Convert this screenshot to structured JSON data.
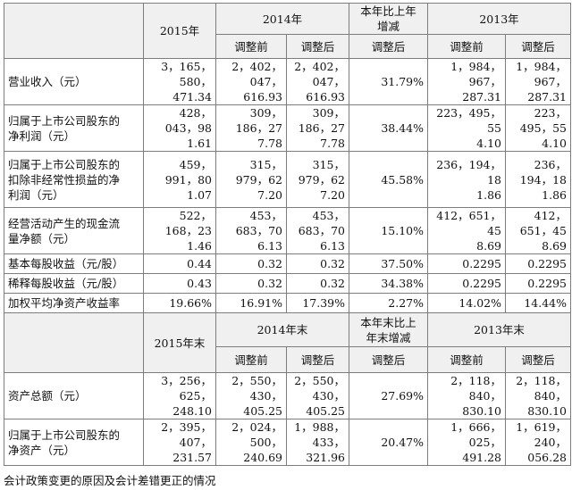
{
  "top_header": {
    "y2015": "2015年",
    "y2014": "2014年",
    "change": "本年比上年\n增减",
    "y2013": "2013年",
    "adj_before": "调整前",
    "adj_after": "调整后",
    "change_adj": "调整后"
  },
  "income_rows": [
    {
      "label": "营业收入（元）",
      "v2015": "3，165，580，\n471.34",
      "v2014a": "2，402，047，\n616.93",
      "v2014b": "2，402，047，\n616.93",
      "chg": "31.79%",
      "v2013a": "1，984，967，\n287.31",
      "v2013b": "1，984，967，\n287.31"
    },
    {
      "label": "归属于上市公司股东的\n净利润（元）",
      "v2015": "428，043，98\n1.61",
      "v2014a": "309，186，27\n7.78",
      "v2014b": "309，186，27\n7.78",
      "chg": "38.44%",
      "v2013a": "223，495，55\n4.10",
      "v2013b": "223，495，55\n4.10"
    },
    {
      "label": "归属于上市公司股东的\n扣除非经常性损益的净\n利润（元）",
      "v2015": "459，991，80\n1.07",
      "v2014a": "315，979，62\n7.20",
      "v2014b": "315，979，62\n7.20",
      "chg": "45.58%",
      "v2013a": "236，194，18\n1.86",
      "v2013b": "236，194，18\n1.86"
    },
    {
      "label": "经营活动产生的现金流\n量净额（元）",
      "v2015": "522，168，23\n1.46",
      "v2014a": "453，683，70\n6.13",
      "v2014b": "453，683，70\n6.13",
      "chg": "15.10%",
      "v2013a": "412，651，45\n8.69",
      "v2013b": "412，651，45\n8.69"
    },
    {
      "label": "基本每股收益（元/股）",
      "v2015": "0.44",
      "v2014a": "0.32",
      "v2014b": "0.32",
      "chg": "37.50%",
      "v2013a": "0.2295",
      "v2013b": "0.2295"
    },
    {
      "label": "稀释每股收益（元/股）",
      "v2015": "0.43",
      "v2014a": "0.32",
      "v2014b": "0.32",
      "chg": "34.38%",
      "v2013a": "0.2295",
      "v2013b": "0.2295"
    },
    {
      "label": "加权平均净资产收益率",
      "v2015": "19.66%",
      "v2014a": "16.91%",
      "v2014b": "17.39%",
      "chg": "2.27%",
      "v2013a": "14.02%",
      "v2013b": "14.44%"
    }
  ],
  "end_header": {
    "y2015": "2015年末",
    "y2014": "2014年末",
    "change": "本年末比上\n年末增减",
    "y2013": "2013年末",
    "adj_before": "调整前",
    "adj_after": "调整后",
    "change_adj": "调整后"
  },
  "asset_rows": [
    {
      "label": "资产总额（元）",
      "v2015": "3，256，625，\n248.10",
      "v2014a": "2，550，430，\n405.25",
      "v2014b": "2，550，430，\n405.25",
      "chg": "27.69%",
      "v2013a": "2，118，840，\n830.10",
      "v2013b": "2，118，840，\n830.10"
    },
    {
      "label": "归属于上市公司股东的\n净资产（元）",
      "v2015": "2，395，407，\n231.57",
      "v2014a": "2，024，500，\n240.69",
      "v2014b": "1，988，433，\n321.96",
      "chg": "20.47%",
      "v2013a": "1，666，025，\n491.28",
      "v2013b": "1，619，240，\n056.28"
    }
  ],
  "footer_note": "会计政策变更的原因及会计差错更正的情况"
}
